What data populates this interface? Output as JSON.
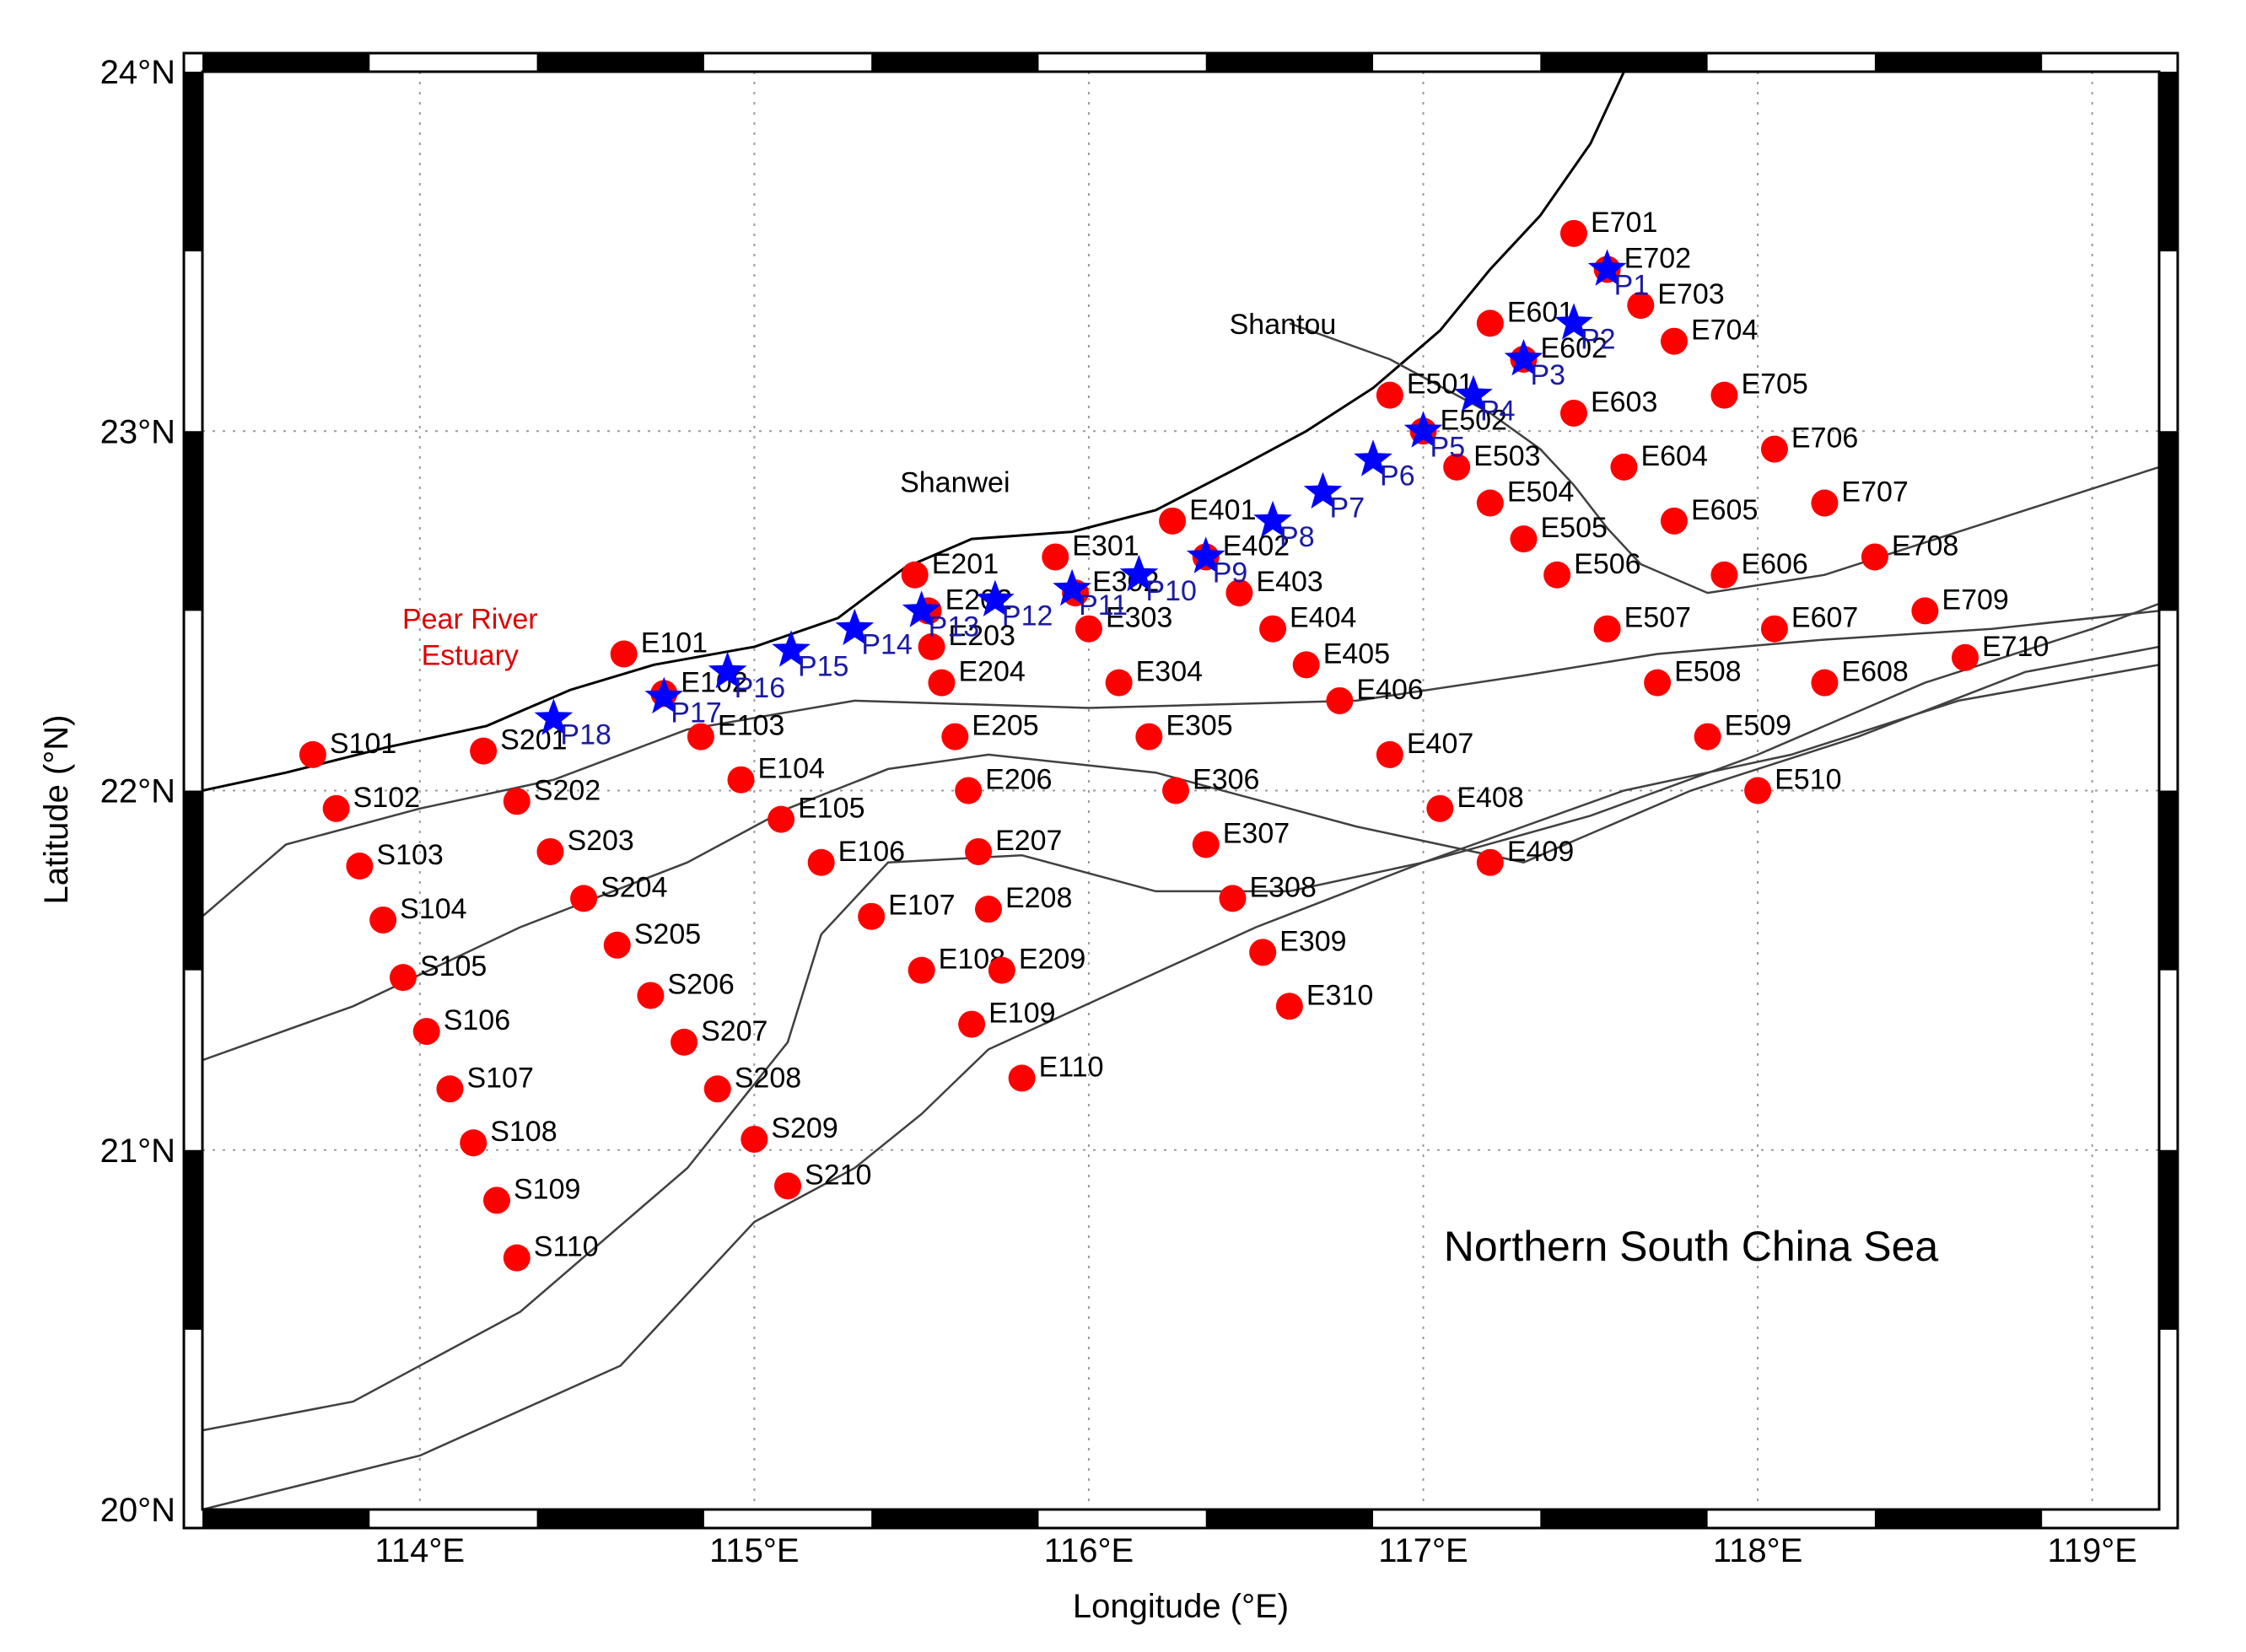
{
  "figure": {
    "title": "Northern South China Sea",
    "xlabel": "Longitude (°E)",
    "ylabel": "Latitude (°N)",
    "xlim": [
      113.35,
      119.2
    ],
    "ylim": [
      20.0,
      24.0
    ],
    "grid": true,
    "place_labels": [
      {
        "name": "Shantou",
        "lon": 116.58,
        "lat": 23.27
      },
      {
        "name": "Shanwei",
        "lon": 115.6,
        "lat": 22.83
      },
      {
        "name": "Pear River",
        "lon": 114.15,
        "lat": 22.45,
        "color": "#e00000"
      },
      {
        "name": "Estuary",
        "lon": 114.15,
        "lat": 22.35,
        "color": "#e00000"
      }
    ]
  },
  "chart_data": {
    "type": "scatter",
    "xlabel": "Longitude (°E)",
    "ylabel": "Latitude (°N)",
    "xlim": [
      113.35,
      119.2
    ],
    "ylim": [
      20.0,
      24.0
    ],
    "x_ticks": [
      {
        "value": 114,
        "label": "114°E"
      },
      {
        "value": 115,
        "label": "115°E"
      },
      {
        "value": 116,
        "label": "116°E"
      },
      {
        "value": 117,
        "label": "117°E"
      },
      {
        "value": 118,
        "label": "118°E"
      },
      {
        "value": 119,
        "label": "119°E"
      }
    ],
    "y_ticks": [
      {
        "value": 20,
        "label": "20°N"
      },
      {
        "value": 21,
        "label": "21°N"
      },
      {
        "value": 22,
        "label": "22°N"
      },
      {
        "value": 23,
        "label": "23°N"
      },
      {
        "value": 24,
        "label": "24°N"
      }
    ],
    "series": [
      {
        "marker": "circle",
        "color": "#ff0000",
        "points": [
          {
            "name": "S101",
            "x": 113.68,
            "y": 22.1
          },
          {
            "name": "S102",
            "x": 113.75,
            "y": 21.95
          },
          {
            "name": "S103",
            "x": 113.82,
            "y": 21.79
          },
          {
            "name": "S104",
            "x": 113.89,
            "y": 21.64
          },
          {
            "name": "S105",
            "x": 113.95,
            "y": 21.48
          },
          {
            "name": "S106",
            "x": 114.02,
            "y": 21.33
          },
          {
            "name": "S107",
            "x": 114.09,
            "y": 21.17
          },
          {
            "name": "S108",
            "x": 114.16,
            "y": 21.02
          },
          {
            "name": "S109",
            "x": 114.23,
            "y": 20.86
          },
          {
            "name": "S110",
            "x": 114.29,
            "y": 20.7
          },
          {
            "name": "S201",
            "x": 114.19,
            "y": 22.11
          },
          {
            "name": "S202",
            "x": 114.29,
            "y": 21.97
          },
          {
            "name": "S203",
            "x": 114.39,
            "y": 21.83
          },
          {
            "name": "S204",
            "x": 114.49,
            "y": 21.7
          },
          {
            "name": "S205",
            "x": 114.59,
            "y": 21.57
          },
          {
            "name": "S206",
            "x": 114.69,
            "y": 21.43
          },
          {
            "name": "S207",
            "x": 114.79,
            "y": 21.3
          },
          {
            "name": "S208",
            "x": 114.89,
            "y": 21.17
          },
          {
            "name": "S209",
            "x": 115.0,
            "y": 21.03
          },
          {
            "name": "S210",
            "x": 115.1,
            "y": 20.9
          },
          {
            "name": "E101",
            "x": 114.61,
            "y": 22.38
          },
          {
            "name": "E102",
            "x": 114.73,
            "y": 22.27
          },
          {
            "name": "E103",
            "x": 114.84,
            "y": 22.15
          },
          {
            "name": "E104",
            "x": 114.96,
            "y": 22.03
          },
          {
            "name": "E105",
            "x": 115.08,
            "y": 21.92
          },
          {
            "name": "E106",
            "x": 115.2,
            "y": 21.8
          },
          {
            "name": "E107",
            "x": 115.35,
            "y": 21.65
          },
          {
            "name": "E108",
            "x": 115.5,
            "y": 21.5
          },
          {
            "name": "E109",
            "x": 115.65,
            "y": 21.35
          },
          {
            "name": "E110",
            "x": 115.8,
            "y": 21.2
          },
          {
            "name": "E201",
            "x": 115.48,
            "y": 22.6
          },
          {
            "name": "E202",
            "x": 115.52,
            "y": 22.5
          },
          {
            "name": "E203",
            "x": 115.53,
            "y": 22.4
          },
          {
            "name": "E204",
            "x": 115.56,
            "y": 22.3
          },
          {
            "name": "E205",
            "x": 115.6,
            "y": 22.15
          },
          {
            "name": "E206",
            "x": 115.64,
            "y": 22.0
          },
          {
            "name": "E207",
            "x": 115.67,
            "y": 21.83
          },
          {
            "name": "E208",
            "x": 115.7,
            "y": 21.67
          },
          {
            "name": "E209",
            "x": 115.74,
            "y": 21.5
          },
          {
            "name": "E301",
            "x": 115.9,
            "y": 22.65
          },
          {
            "name": "E302",
            "x": 115.96,
            "y": 22.55
          },
          {
            "name": "E303",
            "x": 116.0,
            "y": 22.45
          },
          {
            "name": "E304",
            "x": 116.09,
            "y": 22.3
          },
          {
            "name": "E305",
            "x": 116.18,
            "y": 22.15
          },
          {
            "name": "E306",
            "x": 116.26,
            "y": 22.0
          },
          {
            "name": "E307",
            "x": 116.35,
            "y": 21.85
          },
          {
            "name": "E308",
            "x": 116.43,
            "y": 21.7
          },
          {
            "name": "E309",
            "x": 116.52,
            "y": 21.55
          },
          {
            "name": "E310",
            "x": 116.6,
            "y": 21.4
          },
          {
            "name": "E401",
            "x": 116.25,
            "y": 22.75
          },
          {
            "name": "E402",
            "x": 116.35,
            "y": 22.65
          },
          {
            "name": "E403",
            "x": 116.45,
            "y": 22.55
          },
          {
            "name": "E404",
            "x": 116.55,
            "y": 22.45
          },
          {
            "name": "E405",
            "x": 116.65,
            "y": 22.35
          },
          {
            "name": "E406",
            "x": 116.75,
            "y": 22.25
          },
          {
            "name": "E407",
            "x": 116.9,
            "y": 22.1
          },
          {
            "name": "E408",
            "x": 117.05,
            "y": 21.95
          },
          {
            "name": "E409",
            "x": 117.2,
            "y": 21.8
          },
          {
            "name": "E501",
            "x": 116.9,
            "y": 23.1
          },
          {
            "name": "E502",
            "x": 117.0,
            "y": 23.0
          },
          {
            "name": "E503",
            "x": 117.1,
            "y": 22.9
          },
          {
            "name": "E504",
            "x": 117.2,
            "y": 22.8
          },
          {
            "name": "E505",
            "x": 117.3,
            "y": 22.7
          },
          {
            "name": "E506",
            "x": 117.4,
            "y": 22.6
          },
          {
            "name": "E507",
            "x": 117.55,
            "y": 22.45
          },
          {
            "name": "E508",
            "x": 117.7,
            "y": 22.3
          },
          {
            "name": "E509",
            "x": 117.85,
            "y": 22.15
          },
          {
            "name": "E510",
            "x": 118.0,
            "y": 22.0
          },
          {
            "name": "E601",
            "x": 117.2,
            "y": 23.3
          },
          {
            "name": "E602",
            "x": 117.3,
            "y": 23.2
          },
          {
            "name": "E603",
            "x": 117.45,
            "y": 23.05
          },
          {
            "name": "E604",
            "x": 117.6,
            "y": 22.9
          },
          {
            "name": "E605",
            "x": 117.75,
            "y": 22.75
          },
          {
            "name": "E606",
            "x": 117.9,
            "y": 22.6
          },
          {
            "name": "E607",
            "x": 118.05,
            "y": 22.45
          },
          {
            "name": "E608",
            "x": 118.2,
            "y": 22.3
          },
          {
            "name": "E701",
            "x": 117.45,
            "y": 23.55
          },
          {
            "name": "E702",
            "x": 117.55,
            "y": 23.45
          },
          {
            "name": "E703",
            "x": 117.65,
            "y": 23.35
          },
          {
            "name": "E704",
            "x": 117.75,
            "y": 23.25
          },
          {
            "name": "E705",
            "x": 117.9,
            "y": 23.1
          },
          {
            "name": "E706",
            "x": 118.05,
            "y": 22.95
          },
          {
            "name": "E707",
            "x": 118.2,
            "y": 22.8
          },
          {
            "name": "E708",
            "x": 118.35,
            "y": 22.65
          },
          {
            "name": "E709",
            "x": 118.5,
            "y": 22.5
          },
          {
            "name": "E710",
            "x": 118.62,
            "y": 22.37
          }
        ]
      },
      {
        "marker": "star",
        "color": "#0000ff",
        "label_color": "#1a1aa6",
        "points": [
          {
            "name": "P1",
            "x": 117.55,
            "y": 23.45
          },
          {
            "name": "P2",
            "x": 117.45,
            "y": 23.3
          },
          {
            "name": "P3",
            "x": 117.3,
            "y": 23.2
          },
          {
            "name": "P4",
            "x": 117.15,
            "y": 23.1
          },
          {
            "name": "P5",
            "x": 117.0,
            "y": 23.0
          },
          {
            "name": "P6",
            "x": 116.85,
            "y": 22.92
          },
          {
            "name": "P7",
            "x": 116.7,
            "y": 22.83
          },
          {
            "name": "P8",
            "x": 116.55,
            "y": 22.75
          },
          {
            "name": "P9",
            "x": 116.35,
            "y": 22.65
          },
          {
            "name": "P10",
            "x": 116.15,
            "y": 22.6
          },
          {
            "name": "P11",
            "x": 115.95,
            "y": 22.56
          },
          {
            "name": "P12",
            "x": 115.72,
            "y": 22.53
          },
          {
            "name": "P13",
            "x": 115.5,
            "y": 22.5
          },
          {
            "name": "P14",
            "x": 115.3,
            "y": 22.45
          },
          {
            "name": "P15",
            "x": 115.11,
            "y": 22.39
          },
          {
            "name": "P16",
            "x": 114.92,
            "y": 22.33
          },
          {
            "name": "P17",
            "x": 114.73,
            "y": 22.26
          },
          {
            "name": "P18",
            "x": 114.4,
            "y": 22.2
          }
        ]
      }
    ],
    "lines": [
      {
        "name": "coastline",
        "color": "#000000",
        "points": [
          [
            113.35,
            22.0
          ],
          [
            113.6,
            22.05
          ],
          [
            113.9,
            22.12
          ],
          [
            114.2,
            22.18
          ],
          [
            114.45,
            22.28
          ],
          [
            114.7,
            22.35
          ],
          [
            115.0,
            22.4
          ],
          [
            115.25,
            22.48
          ],
          [
            115.45,
            22.62
          ],
          [
            115.65,
            22.7
          ],
          [
            115.95,
            22.72
          ],
          [
            116.2,
            22.78
          ],
          [
            116.45,
            22.9
          ],
          [
            116.65,
            23.0
          ],
          [
            116.85,
            23.12
          ],
          [
            117.05,
            23.28
          ],
          [
            117.2,
            23.45
          ],
          [
            117.35,
            23.6
          ],
          [
            117.5,
            23.8
          ],
          [
            117.6,
            24.0
          ]
        ]
      },
      {
        "name": "isobath-1",
        "color": "#404040",
        "points": [
          [
            113.35,
            21.65
          ],
          [
            113.6,
            21.85
          ],
          [
            114.0,
            21.95
          ],
          [
            114.4,
            22.03
          ],
          [
            114.8,
            22.17
          ],
          [
            115.3,
            22.25
          ],
          [
            116.0,
            22.23
          ],
          [
            116.8,
            22.25
          ],
          [
            117.3,
            22.32
          ],
          [
            117.7,
            22.38
          ],
          [
            118.2,
            22.42
          ],
          [
            118.7,
            22.45
          ],
          [
            119.2,
            22.5
          ]
        ]
      },
      {
        "name": "isobath-2",
        "color": "#404040",
        "points": [
          [
            113.35,
            21.25
          ],
          [
            113.8,
            21.4
          ],
          [
            114.3,
            21.62
          ],
          [
            114.8,
            21.8
          ],
          [
            115.1,
            21.95
          ],
          [
            115.4,
            22.06
          ],
          [
            115.7,
            22.1
          ],
          [
            116.2,
            22.05
          ],
          [
            116.8,
            21.9
          ],
          [
            117.3,
            21.8
          ],
          [
            117.8,
            22.0
          ],
          [
            118.3,
            22.15
          ],
          [
            118.8,
            22.33
          ],
          [
            119.2,
            22.4
          ]
        ]
      },
      {
        "name": "isobath-3",
        "color": "#404040",
        "points": [
          [
            113.35,
            20.22
          ],
          [
            113.8,
            20.3
          ],
          [
            114.3,
            20.55
          ],
          [
            114.8,
            20.95
          ],
          [
            115.1,
            21.3
          ],
          [
            115.2,
            21.6
          ],
          [
            115.4,
            21.8
          ],
          [
            115.8,
            21.82
          ],
          [
            116.2,
            21.72
          ],
          [
            116.6,
            21.72
          ],
          [
            117.0,
            21.8
          ],
          [
            117.5,
            21.93
          ],
          [
            118.0,
            22.1
          ],
          [
            118.5,
            22.3
          ],
          [
            119.0,
            22.45
          ],
          [
            119.2,
            22.52
          ]
        ]
      },
      {
        "name": "isobath-4",
        "color": "#404040",
        "points": [
          [
            113.35,
            20.0
          ],
          [
            114.0,
            20.15
          ],
          [
            114.6,
            20.4
          ],
          [
            115.0,
            20.8
          ],
          [
            115.3,
            20.95
          ],
          [
            115.5,
            21.1
          ],
          [
            115.7,
            21.28
          ],
          [
            116.1,
            21.45
          ],
          [
            116.5,
            21.62
          ],
          [
            117.0,
            21.8
          ],
          [
            117.6,
            22.0
          ],
          [
            118.1,
            22.1
          ],
          [
            118.6,
            22.25
          ],
          [
            119.2,
            22.35
          ]
        ]
      },
      {
        "name": "isobath-5",
        "color": "#404040",
        "points": [
          [
            116.6,
            23.3
          ],
          [
            116.9,
            23.2
          ],
          [
            117.2,
            23.05
          ],
          [
            117.35,
            22.95
          ],
          [
            117.45,
            22.85
          ],
          [
            117.55,
            22.73
          ],
          [
            117.65,
            22.63
          ],
          [
            117.85,
            22.55
          ],
          [
            118.2,
            22.6
          ],
          [
            118.7,
            22.75
          ],
          [
            119.2,
            22.9
          ]
        ]
      }
    ]
  }
}
